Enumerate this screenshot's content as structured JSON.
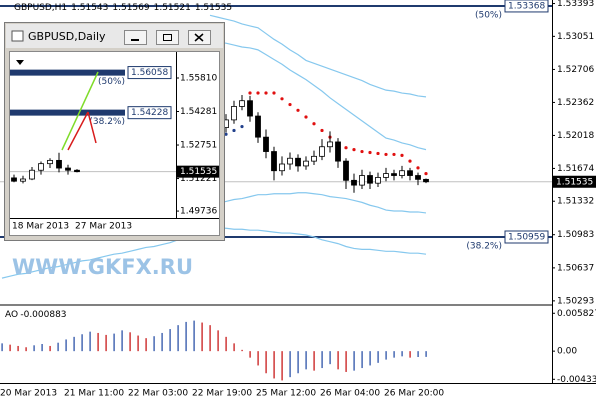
{
  "chart_data": [
    {
      "type": "candlestick",
      "title": "GBPUSD,H1",
      "header_values": [
        1.51543,
        1.51569,
        1.51521,
        1.51535
      ],
      "categories": [
        "20 Mar 2013",
        null,
        null,
        null,
        null,
        null,
        null,
        null,
        "21 Mar 11:00",
        null,
        null,
        null,
        null,
        null,
        null,
        null,
        "22 Mar 03:00",
        null,
        null,
        null,
        null,
        null,
        null,
        null,
        "22 Mar 19:00",
        null,
        null,
        null,
        null,
        null,
        null,
        null,
        "25 Mar 12:00",
        null,
        null,
        null,
        null,
        null,
        null,
        null,
        "26 Mar 04:00",
        null,
        null,
        null,
        null,
        null,
        null,
        null,
        "26 Mar 20:00",
        null,
        null,
        null,
        null,
        null
      ],
      "open": [
        null,
        null,
        null,
        null,
        null,
        null,
        null,
        null,
        null,
        null,
        null,
        null,
        null,
        null,
        null,
        null,
        null,
        null,
        null,
        null,
        null,
        null,
        null,
        null,
        null,
        null,
        null,
        null,
        1.521,
        1.5218,
        1.5232,
        1.5238,
        1.5222,
        1.52,
        1.5185,
        1.5165,
        1.5172,
        1.5178,
        1.517,
        1.5175,
        1.518,
        1.519,
        1.5195,
        1.5175,
        1.5155,
        1.515,
        1.516,
        1.5152,
        1.5158,
        1.5162,
        1.516,
        1.5165,
        1.516,
        1.5156
      ],
      "high": [
        null,
        null,
        null,
        null,
        null,
        null,
        null,
        null,
        null,
        null,
        null,
        null,
        null,
        null,
        null,
        null,
        null,
        null,
        null,
        null,
        null,
        null,
        null,
        null,
        null,
        null,
        null,
        null,
        1.5224,
        1.5238,
        1.5244,
        1.5243,
        1.5226,
        1.5208,
        1.519,
        1.518,
        1.5184,
        1.5182,
        1.518,
        1.5186,
        1.5198,
        1.5206,
        1.5199,
        1.5178,
        1.5162,
        1.5166,
        1.5164,
        1.5163,
        1.5168,
        1.5166,
        1.517,
        1.5168,
        1.5163,
        1.51569
      ],
      "low": [
        null,
        null,
        null,
        null,
        null,
        null,
        null,
        null,
        null,
        null,
        null,
        null,
        null,
        null,
        null,
        null,
        null,
        null,
        null,
        null,
        null,
        null,
        null,
        null,
        null,
        null,
        null,
        null,
        1.5205,
        1.5214,
        1.5228,
        1.5216,
        1.5194,
        1.5178,
        1.5155,
        1.516,
        1.5166,
        1.5164,
        1.5166,
        1.5171,
        1.5176,
        1.5184,
        1.5168,
        1.5146,
        1.5142,
        1.5146,
        1.5146,
        1.5148,
        1.5154,
        1.5155,
        1.5157,
        1.5155,
        1.515,
        1.51521
      ],
      "close": [
        null,
        null,
        null,
        null,
        null,
        null,
        null,
        null,
        null,
        null,
        null,
        null,
        null,
        null,
        null,
        null,
        null,
        null,
        null,
        null,
        null,
        null,
        null,
        null,
        null,
        null,
        null,
        null,
        1.5218,
        1.5232,
        1.5238,
        1.5222,
        1.52,
        1.5185,
        1.5165,
        1.5172,
        1.5178,
        1.517,
        1.5175,
        1.518,
        1.519,
        1.5195,
        1.5175,
        1.5155,
        1.515,
        1.516,
        1.5152,
        1.5158,
        1.5162,
        1.516,
        1.5165,
        1.516,
        1.5156,
        1.51535
      ],
      "series": [
        {
          "type": "line",
          "color": "#86c8ee",
          "values": [
            null,
            null,
            null,
            null,
            null,
            null,
            null,
            null,
            null,
            null,
            null,
            null,
            null,
            null,
            null,
            null,
            null,
            null,
            null,
            null,
            null,
            null,
            null,
            null,
            null,
            null,
            1.5327,
            1.5325,
            1.5323,
            1.5321,
            1.5318,
            1.5316,
            1.5314,
            1.5308,
            1.5302,
            1.5297,
            1.5291,
            1.5286,
            1.528,
            1.5277,
            1.5274,
            1.5271,
            1.5268,
            1.5265,
            1.5262,
            1.5259,
            1.5255,
            1.5252,
            1.5249,
            1.5248,
            1.5246,
            1.5245,
            1.5243,
            1.5242
          ]
        },
        {
          "type": "line",
          "color": "#86c8ee",
          "values": [
            null,
            null,
            null,
            null,
            null,
            null,
            null,
            null,
            null,
            null,
            null,
            null,
            null,
            null,
            null,
            null,
            null,
            null,
            null,
            null,
            null,
            null,
            null,
            null,
            null,
            null,
            1.5301,
            1.5299,
            1.5298,
            1.5296,
            1.5294,
            1.5293,
            1.5291,
            1.5286,
            1.5281,
            1.5276,
            1.527,
            1.5265,
            1.526,
            1.5254,
            1.5248,
            1.5241,
            1.5235,
            1.5229,
            1.5223,
            1.5217,
            1.5211,
            1.5205,
            1.5199,
            1.5197,
            1.5194,
            1.5192,
            1.5189,
            1.5187
          ]
        },
        {
          "type": "line",
          "color": "#86c8ee",
          "values": [
            null,
            null,
            null,
            null,
            null,
            null,
            null,
            null,
            null,
            null,
            null,
            null,
            null,
            null,
            null,
            null,
            null,
            null,
            null,
            null,
            null,
            null,
            null,
            null,
            null,
            null,
            1.5129,
            1.5131,
            1.5133,
            1.5135,
            1.5136,
            1.5138,
            1.514,
            1.514,
            1.5141,
            1.5141,
            1.5141,
            1.5142,
            1.5142,
            1.5141,
            1.514,
            1.5138,
            1.5137,
            1.5136,
            1.5134,
            1.5132,
            1.5129,
            1.5127,
            1.5124,
            1.5123,
            1.5123,
            1.5122,
            1.5122,
            1.5121
          ]
        },
        {
          "type": "line",
          "color": "#86c8ee",
          "values": [
            1.5053,
            1.5055,
            1.5057,
            1.5058,
            1.506,
            1.5062,
            1.5064,
            1.5065,
            1.5067,
            1.5069,
            1.5071,
            1.5072,
            1.5074,
            1.5076,
            1.5078,
            1.5079,
            1.5081,
            1.5083,
            1.5085,
            1.5086,
            1.5088,
            1.509,
            1.5093,
            1.5095,
            1.5098,
            1.51,
            1.5103,
            1.5105,
            1.5105,
            1.5104,
            1.5104,
            1.5103,
            1.5103,
            1.5102,
            1.5101,
            1.51,
            1.51,
            1.5099,
            1.5098,
            1.5096,
            1.5093,
            1.5091,
            1.5089,
            1.5086,
            1.5084,
            1.5083,
            1.5083,
            1.5082,
            1.5081,
            1.5081,
            1.508,
            1.5079,
            1.5079,
            1.5078
          ]
        },
        {
          "type": "dots",
          "color": "#22408c",
          "values": [
            null,
            null,
            null,
            null,
            null,
            null,
            null,
            null,
            null,
            null,
            null,
            null,
            null,
            null,
            null,
            null,
            null,
            null,
            null,
            null,
            null,
            null,
            null,
            null,
            null,
            null,
            null,
            1.52,
            1.5203,
            1.5207,
            1.5211,
            null,
            null,
            null,
            null,
            null,
            null,
            null,
            null,
            null,
            null,
            null,
            null,
            null,
            null,
            null,
            null,
            null,
            null,
            null,
            null,
            null,
            null,
            null
          ]
        },
        {
          "type": "dots",
          "color": "#e01010",
          "values": [
            null,
            null,
            null,
            null,
            null,
            null,
            null,
            null,
            null,
            null,
            null,
            null,
            null,
            null,
            null,
            null,
            null,
            null,
            null,
            null,
            null,
            null,
            null,
            null,
            null,
            null,
            null,
            null,
            null,
            null,
            null,
            1.5246,
            1.5246,
            1.5246,
            1.5246,
            1.524,
            1.5234,
            1.5228,
            1.5221,
            1.5214,
            1.5207,
            1.52,
            1.5192,
            1.5189,
            1.5187,
            1.5185,
            1.5184,
            1.5183,
            1.5182,
            1.5182,
            1.5181,
            1.5175,
            1.5168,
            1.5162
          ]
        }
      ],
      "levels": [
        {
          "value": 1.53368,
          "tag": "(50%)"
        },
        {
          "value": 1.50959,
          "tag": "(38.2%)"
        }
      ],
      "level_color": "#1f3a6e",
      "last_price": 1.51535,
      "ylim": [
        1.5025,
        1.5343
      ],
      "yticks": [
        1.53393,
        1.53051,
        1.52706,
        1.52362,
        1.52018,
        1.51674,
        1.51332,
        1.50983,
        1.50637,
        1.50293
      ]
    },
    {
      "type": "bar",
      "title": "AO",
      "current": -0.000883,
      "up_color": "#3b5fae",
      "down_color": "#cc2a2a",
      "values": [
        0.0012,
        0.001,
        0.0008,
        0.0006,
        0.0009,
        0.0011,
        0.0008,
        0.0013,
        0.0018,
        0.0022,
        0.0026,
        0.003,
        0.0028,
        0.0025,
        0.0027,
        0.0032,
        0.0029,
        0.0024,
        0.002,
        0.0023,
        0.0028,
        0.0034,
        0.004,
        0.0045,
        0.0047,
        0.0044,
        0.004,
        0.0032,
        0.0022,
        0.0012,
        0.0002,
        -0.001,
        -0.0022,
        -0.0034,
        -0.0042,
        -0.0045,
        -0.004,
        -0.0034,
        -0.0028,
        -0.003,
        -0.0026,
        -0.002,
        -0.0028,
        -0.0032,
        -0.003,
        -0.0026,
        -0.0022,
        -0.0018,
        -0.0013,
        -0.001,
        -0.0008,
        -0.001,
        -0.0009,
        -0.000883
      ],
      "ylim": [
        -0.0049,
        0.0071
      ],
      "yticks": [
        0.005827,
        {
          "value": 0,
          "label": "0.00"
        },
        -0.00433
      ]
    },
    {
      "type": "candlestick",
      "title": "GBPUSD,Daily",
      "categories": [
        "18 Mar 2013",
        null,
        null,
        null,
        null,
        null,
        null,
        "27 Mar 2013"
      ],
      "open": [
        1.5125,
        1.511,
        1.512,
        1.516,
        1.519,
        1.5205,
        1.517,
        1.516
      ],
      "high": [
        1.514,
        1.5135,
        1.5175,
        1.52,
        1.5215,
        1.524,
        1.5185,
        1.5165
      ],
      "low": [
        1.5105,
        1.51,
        1.5115,
        1.514,
        1.517,
        1.515,
        1.514,
        1.515
      ],
      "close": [
        1.511,
        1.512,
        1.516,
        1.519,
        1.5205,
        1.517,
        1.516,
        1.51535
      ],
      "levels": [
        {
          "value": 1.56058,
          "tag": "(50%)"
        },
        {
          "value": 1.54228,
          "tag": "(38.2%)"
        }
      ],
      "level_color": "#1f3a6e",
      "last_price": 1.51535,
      "ylim": [
        1.4942,
        1.5686
      ],
      "yticks": [
        {
          "value": 1.5581,
          "label": "1.55810"
        },
        1.54281,
        1.52751,
        1.51221,
        1.49736
      ]
    }
  ],
  "watermark": "WWW.GKFX.RU"
}
